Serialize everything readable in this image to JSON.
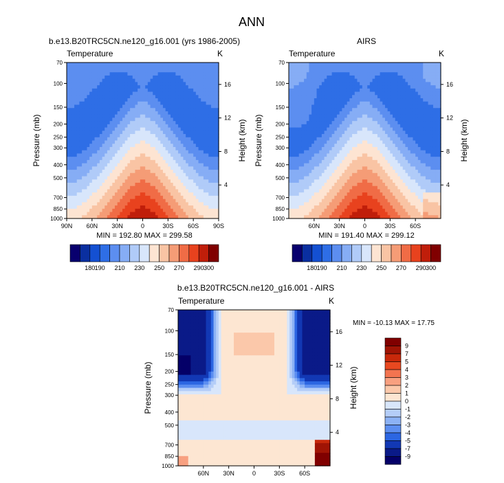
{
  "figure": {
    "title": "ANN"
  },
  "chart_data": [
    {
      "type": "heatmap",
      "title": "b.e13.B20TRC5CN.ne120_g16.001 (yrs 1986-2005)",
      "field_label": "Temperature",
      "units": "K",
      "ylabel": "Pressure (mb)",
      "ylabel_right": "Height (km)",
      "pressure_ticks": [
        70,
        100,
        150,
        200,
        250,
        300,
        400,
        500,
        700,
        850,
        1000
      ],
      "pressure_tick_labels": [
        "70",
        "100",
        "150",
        "200",
        "250",
        "300",
        "400",
        "500",
        "700",
        "850",
        "1000"
      ],
      "height_ticks": [
        4,
        8,
        12,
        16
      ],
      "height_tick_labels": [
        "4",
        "8",
        "12",
        "16"
      ],
      "lat_ticks": [
        90,
        60,
        30,
        0,
        -30,
        -60,
        -90
      ],
      "lat_tick_labels": [
        "90N",
        "60N",
        "30N",
        "0",
        "30S",
        "60S",
        "90S"
      ],
      "lat_range": [
        90,
        -90
      ],
      "min": 192.8,
      "max": 299.58,
      "stats_text": "MIN = 192.80   MAX = 299.58",
      "colorbar": {
        "orientation": "horizontal",
        "levels": [
          170,
          180,
          190,
          200,
          210,
          220,
          230,
          240,
          250,
          260,
          270,
          280,
          290,
          300
        ],
        "tick_labels": [
          "180",
          "190",
          "210",
          "230",
          "250",
          "270",
          "290",
          "300"
        ],
        "tick_values": [
          180,
          190,
          210,
          230,
          250,
          270,
          290,
          300
        ]
      }
    },
    {
      "type": "heatmap",
      "title": "AIRS",
      "field_label": "Temperature",
      "units": "K",
      "ylabel": "Pressure (mb)",
      "ylabel_right": "Height (km)",
      "pressure_ticks": [
        70,
        100,
        150,
        200,
        250,
        300,
        400,
        500,
        700,
        850,
        1000
      ],
      "pressure_tick_labels": [
        "70",
        "100",
        "150",
        "200",
        "250",
        "300",
        "400",
        "500",
        "700",
        "850",
        "1000"
      ],
      "height_ticks": [
        4,
        8,
        12,
        16
      ],
      "height_tick_labels": [
        "4",
        "8",
        "12",
        "16"
      ],
      "lat_ticks": [
        60,
        30,
        0,
        -30,
        -60
      ],
      "lat_tick_labels": [
        "60N",
        "30N",
        "0",
        "30S",
        "60S"
      ],
      "lat_range": [
        90,
        -90
      ],
      "min": 191.4,
      "max": 299.12,
      "stats_text": "MIN = 191.40   MAX = 299.12",
      "colorbar": {
        "orientation": "horizontal",
        "levels": [
          170,
          180,
          190,
          200,
          210,
          220,
          230,
          240,
          250,
          260,
          270,
          280,
          290,
          300
        ],
        "tick_labels": [
          "180",
          "190",
          "210",
          "230",
          "250",
          "270",
          "290",
          "300"
        ],
        "tick_values": [
          180,
          190,
          210,
          230,
          250,
          270,
          290,
          300
        ]
      }
    },
    {
      "type": "heatmap",
      "title": "b.e13.B20TRC5CN.ne120_g16.001 - AIRS",
      "field_label": "Temperature",
      "units": "K",
      "ylabel": "Pressure (mb)",
      "ylabel_right": "Height (km)",
      "pressure_ticks": [
        70,
        100,
        150,
        200,
        250,
        300,
        400,
        500,
        700,
        850,
        1000
      ],
      "pressure_tick_labels": [
        "70",
        "100",
        "150",
        "200",
        "250",
        "300",
        "400",
        "500",
        "700",
        "850",
        "1000"
      ],
      "height_ticks": [
        4,
        8,
        12,
        16
      ],
      "height_tick_labels": [
        "4",
        "8",
        "12",
        "16"
      ],
      "lat_ticks": [
        60,
        30,
        0,
        -30,
        -60
      ],
      "lat_tick_labels": [
        "60N",
        "30N",
        "0",
        "30S",
        "60S"
      ],
      "lat_range": [
        90,
        -90
      ],
      "min": -10.13,
      "max": 17.75,
      "stats_text": "MIN = -10.13  MAX =  17.75",
      "colorbar": {
        "orientation": "vertical",
        "tick_labels": [
          "9",
          "7",
          "5",
          "4",
          "3",
          "2",
          "1",
          "0",
          "-1",
          "-2",
          "-3",
          "-4",
          "-5",
          "-7",
          "-9"
        ]
      }
    }
  ],
  "palettes": {
    "temperature": [
      "#08006e",
      "#0a2fa0",
      "#1450d2",
      "#2e6ee6",
      "#5c8ef0",
      "#86adf5",
      "#b0cbf8",
      "#d8e6fb",
      "#fde4d2",
      "#f9c4a4",
      "#f59c76",
      "#f06c46",
      "#e8421e",
      "#c01e0a",
      "#800000"
    ],
    "difference": [
      "#800000",
      "#a01405",
      "#c8280a",
      "#e84820",
      "#f37450",
      "#f8a080",
      "#fbc8aa",
      "#fde6d2",
      "#d8e6fb",
      "#b4cdf8",
      "#8cb2f5",
      "#5c8ef0",
      "#2c66e2",
      "#1238b4",
      "#0a1a88",
      "#040068"
    ]
  }
}
